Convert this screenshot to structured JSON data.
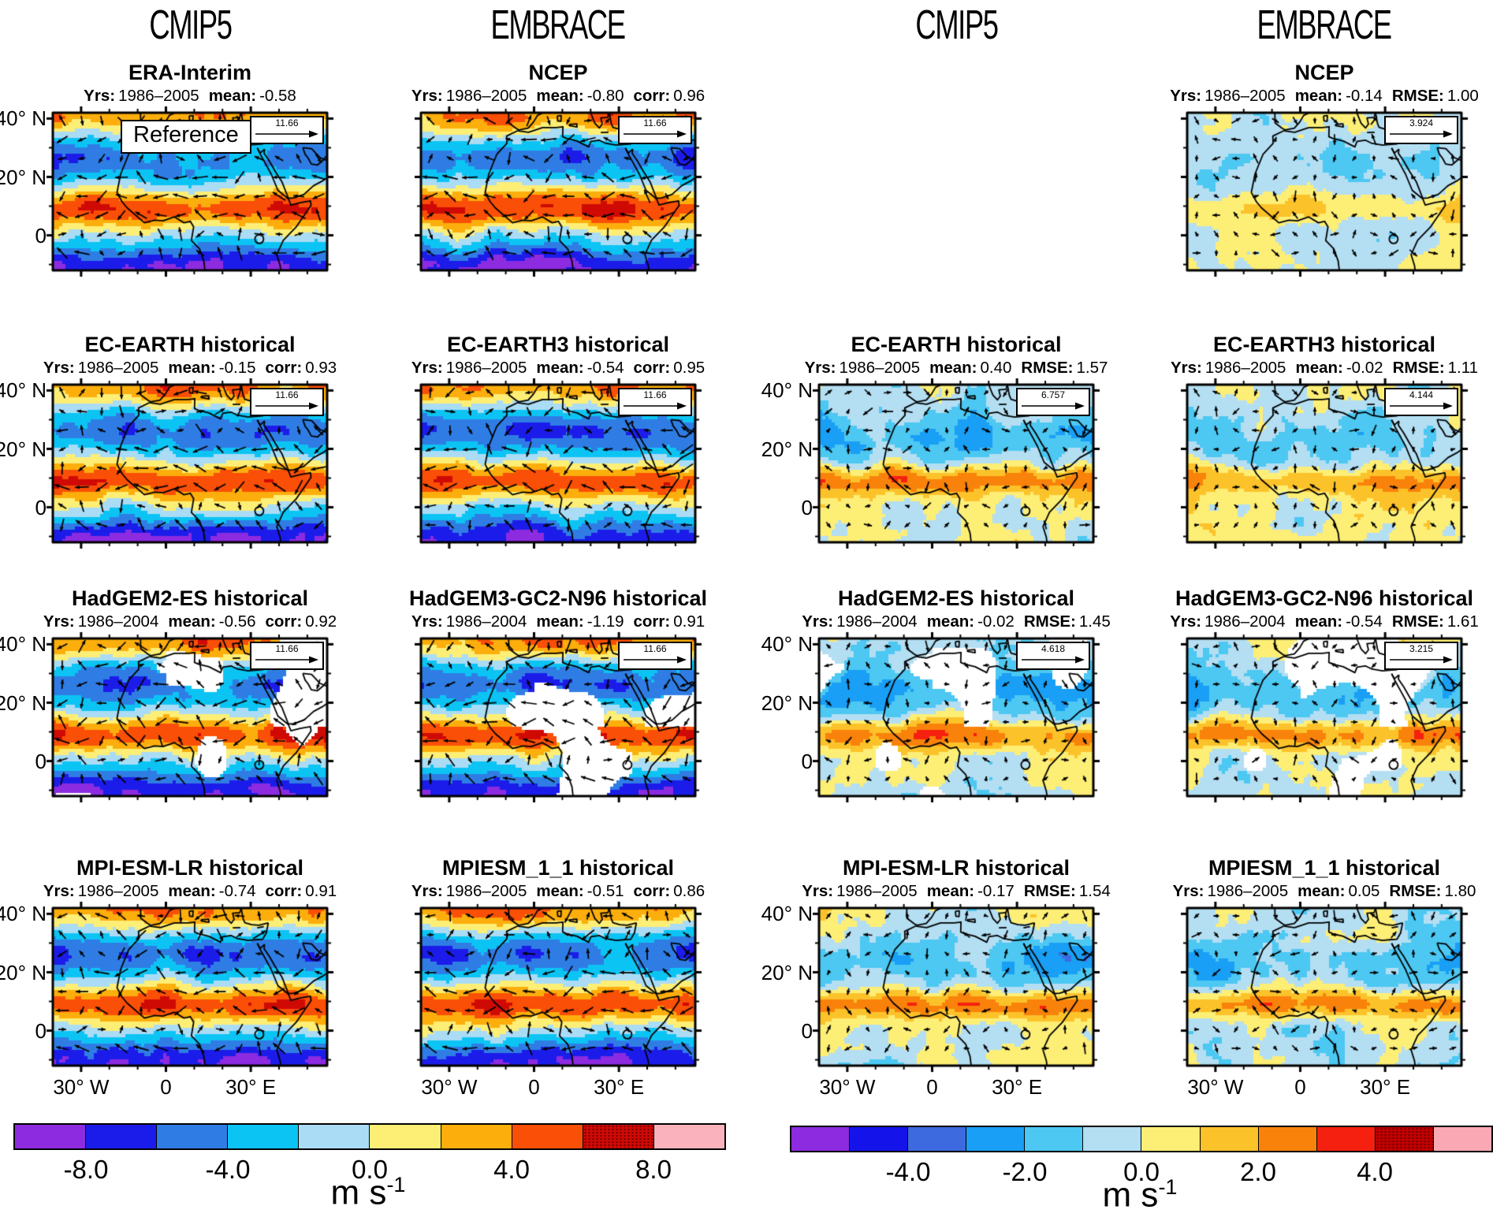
{
  "figure": {
    "headers": [
      {
        "label": "CMIP5"
      },
      {
        "label": "EMBRACE"
      },
      {
        "label": "CMIP5"
      },
      {
        "label": "EMBRACE"
      }
    ],
    "labels": {
      "yrs": "Yrs:",
      "mean": "mean:"
    },
    "reference_label": "Reference",
    "axes": {
      "x_ticks": [
        "30° W",
        "0",
        "30° E"
      ],
      "y_ticks": [
        "40° N",
        "20° N",
        "0"
      ]
    },
    "panels": [
      {
        "title": "ERA-Interim",
        "yrs": "1986–2005",
        "mean": "-0.58",
        "metric_label": "",
        "metric": "",
        "key": "11.66",
        "col": 0,
        "row": 0,
        "kind": "abs",
        "seed": 3,
        "mask": false,
        "reference": true
      },
      {
        "title": "NCEP",
        "yrs": "1986–2005",
        "mean": "-0.80",
        "metric_label": "corr:",
        "metric": "0.96",
        "key": "11.66",
        "col": 1,
        "row": 0,
        "kind": "abs",
        "seed": 4,
        "mask": false
      },
      {
        "title": "NCEP",
        "yrs": "1986–2005",
        "mean": "-0.14",
        "metric_label": "RMSE:",
        "metric": "1.00",
        "key": "3.924",
        "col": 3,
        "row": 0,
        "kind": "diff",
        "strength": 0.45,
        "seed": 5,
        "mask": false
      },
      {
        "title": "EC-EARTH historical",
        "yrs": "1986–2005",
        "mean": "-0.15",
        "metric_label": "corr:",
        "metric": "0.93",
        "key": "11.66",
        "col": 0,
        "row": 1,
        "kind": "abs",
        "seed": 6,
        "mask": false
      },
      {
        "title": "EC-EARTH3 historical",
        "yrs": "1986–2005",
        "mean": "-0.54",
        "metric_label": "corr:",
        "metric": "0.95",
        "key": "11.66",
        "col": 1,
        "row": 1,
        "kind": "abs",
        "seed": 7,
        "mask": false
      },
      {
        "title": "EC-EARTH historical",
        "yrs": "1986–2005",
        "mean": "0.40",
        "metric_label": "RMSE:",
        "metric": "1.57",
        "key": "6.757",
        "col": 2,
        "row": 1,
        "kind": "diff",
        "strength": 1,
        "seed": 8,
        "mask": false
      },
      {
        "title": "EC-EARTH3 historical",
        "yrs": "1986–2005",
        "mean": "-0.02",
        "metric_label": "RMSE:",
        "metric": "1.11",
        "key": "4.144",
        "col": 3,
        "row": 1,
        "kind": "diff",
        "strength": 0.8,
        "seed": 9,
        "mask": false
      },
      {
        "title": "HadGEM2-ES historical",
        "yrs": "1986–2004",
        "mean": "-0.56",
        "metric_label": "corr:",
        "metric": "0.92",
        "key": "11.66",
        "col": 0,
        "row": 2,
        "kind": "abs",
        "seed": 10,
        "mask": true
      },
      {
        "title": "HadGEM3-GC2-N96 historical",
        "yrs": "1986–2004",
        "mean": "-1.19",
        "metric_label": "corr:",
        "metric": "0.91",
        "key": "11.66",
        "col": 1,
        "row": 2,
        "kind": "abs",
        "seed": 11,
        "mask": true
      },
      {
        "title": "HadGEM2-ES historical",
        "yrs": "1986–2004",
        "mean": "-0.02",
        "metric_label": "RMSE:",
        "metric": "1.45",
        "key": "4.618",
        "col": 2,
        "row": 2,
        "kind": "diff",
        "strength": 1,
        "seed": 12,
        "mask": true
      },
      {
        "title": "HadGEM3-GC2-N96 historical",
        "yrs": "1986–2004",
        "mean": "-0.54",
        "metric_label": "RMSE:",
        "metric": "1.61",
        "key": "3.215",
        "col": 3,
        "row": 2,
        "kind": "diff",
        "strength": 1,
        "seed": 13,
        "mask": true
      },
      {
        "title": "MPI-ESM-LR historical",
        "yrs": "1986–2005",
        "mean": "-0.74",
        "metric_label": "corr:",
        "metric": "0.91",
        "key": null,
        "col": 0,
        "row": 3,
        "kind": "abs",
        "seed": 14,
        "mask": false
      },
      {
        "title": "MPIESM_1_1 historical",
        "yrs": "1986–2005",
        "mean": "-0.51",
        "metric_label": "corr:",
        "metric": "0.86",
        "key": null,
        "col": 1,
        "row": 3,
        "kind": "abs",
        "seed": 15,
        "mask": false
      },
      {
        "title": "MPI-ESM-LR historical",
        "yrs": "1986–2005",
        "mean": "-0.17",
        "metric_label": "RMSE:",
        "metric": "1.54",
        "key": null,
        "col": 2,
        "row": 3,
        "kind": "diff",
        "strength": 1,
        "seed": 16,
        "mask": false
      },
      {
        "title": "MPIESM_1_1 historical",
        "yrs": "1986–2005",
        "mean": "0.05",
        "metric_label": "RMSE:",
        "metric": "1.80",
        "key": null,
        "col": 3,
        "row": 3,
        "kind": "diff",
        "strength": 1,
        "seed": 17,
        "mask": false
      }
    ],
    "colorbars": {
      "left": {
        "unit": "m s",
        "unit_sup": "-1",
        "labels": [
          "-8.0",
          "-4.0",
          "0.0",
          "4.0",
          "8.0"
        ],
        "colors": [
          "#8c2be0",
          "#1c1cea",
          "#2f7de4",
          "#0cc4f4",
          "#abdcf5",
          "#fdee76",
          "#fcae0c",
          "#fa4f07",
          "#cf0a04",
          "#fab3bc"
        ],
        "hatch_index": 8
      },
      "right": {
        "unit": "m s",
        "unit_sup": "-1",
        "labels": [
          "-4.0",
          "-2.0",
          "0.0",
          "2.0",
          "4.0"
        ],
        "colors": [
          "#8c2be0",
          "#1414ea",
          "#3e6ae0",
          "#199ff5",
          "#4cc8f2",
          "#b4def2",
          "#fdee76",
          "#fcc22a",
          "#f9820b",
          "#f52010",
          "#c00000",
          "#faa9b4"
        ],
        "hatch_index": 10
      }
    }
  },
  "chart_data": {
    "type": "map-grid",
    "title": "Wind field maps: CMIP5 and EMBRACE models vs reanalysis references, with vector overlays",
    "columns": [
      "CMIP5",
      "EMBRACE",
      "CMIP5",
      "EMBRACE"
    ],
    "map_domain": {
      "lon": [
        -40,
        57
      ],
      "lat": [
        -12,
        42
      ],
      "x_ticks": [
        "30° W",
        "0",
        "30° E"
      ],
      "y_ticks": [
        "40° N",
        "20° N",
        "0"
      ]
    },
    "panels": [
      {
        "col": 0,
        "row": 0,
        "title": "ERA-Interim",
        "years": "1986–2005",
        "mean": -0.58,
        "vector_key": 11.66,
        "label": "Reference"
      },
      {
        "col": 1,
        "row": 0,
        "title": "NCEP",
        "years": "1986–2005",
        "mean": -0.8,
        "corr": 0.96,
        "vector_key": 11.66
      },
      {
        "col": 3,
        "row": 0,
        "title": "NCEP",
        "years": "1986–2005",
        "mean": -0.14,
        "rmse": 1.0,
        "vector_key": 3.924
      },
      {
        "col": 0,
        "row": 1,
        "title": "EC-EARTH historical",
        "years": "1986–2005",
        "mean": -0.15,
        "corr": 0.93,
        "vector_key": 11.66
      },
      {
        "col": 1,
        "row": 1,
        "title": "EC-EARTH3 historical",
        "years": "1986–2005",
        "mean": -0.54,
        "corr": 0.95,
        "vector_key": 11.66
      },
      {
        "col": 2,
        "row": 1,
        "title": "EC-EARTH historical",
        "years": "1986–2005",
        "mean": 0.4,
        "rmse": 1.57,
        "vector_key": 6.757
      },
      {
        "col": 3,
        "row": 1,
        "title": "EC-EARTH3 historical",
        "years": "1986–2005",
        "mean": -0.02,
        "rmse": 1.11,
        "vector_key": 4.144
      },
      {
        "col": 0,
        "row": 2,
        "title": "HadGEM2-ES historical",
        "years": "1986–2004",
        "mean": -0.56,
        "corr": 0.92,
        "vector_key": 11.66
      },
      {
        "col": 1,
        "row": 2,
        "title": "HadGEM3-GC2-N96 historical",
        "years": "1986–2004",
        "mean": -1.19,
        "corr": 0.91,
        "vector_key": 11.66
      },
      {
        "col": 2,
        "row": 2,
        "title": "HadGEM2-ES historical",
        "years": "1986–2004",
        "mean": -0.02,
        "rmse": 1.45,
        "vector_key": 4.618
      },
      {
        "col": 3,
        "row": 2,
        "title": "HadGEM3-GC2-N96 historical",
        "years": "1986–2004",
        "mean": -0.54,
        "rmse": 1.61,
        "vector_key": 3.215
      },
      {
        "col": 0,
        "row": 3,
        "title": "MPI-ESM-LR historical",
        "years": "1986–2005",
        "mean": -0.74,
        "corr": 0.91
      },
      {
        "col": 1,
        "row": 3,
        "title": "MPIESM_1_1 historical",
        "years": "1986–2005",
        "mean": -0.51,
        "corr": 0.86
      },
      {
        "col": 2,
        "row": 3,
        "title": "MPI-ESM-LR historical",
        "years": "1986–2005",
        "mean": -0.17,
        "rmse": 1.54
      },
      {
        "col": 3,
        "row": 3,
        "title": "MPIESM_1_1 historical",
        "years": "1986–2005",
        "mean": 0.05,
        "rmse": 1.8
      }
    ],
    "colorbar_left": {
      "unit": "m s-1",
      "tick_values": [
        -8.0,
        -4.0,
        0.0,
        4.0,
        8.0
      ],
      "n_segments": 10,
      "range": [
        -10,
        10
      ]
    },
    "colorbar_right": {
      "unit": "m s-1",
      "tick_values": [
        -4.0,
        -2.0,
        0.0,
        2.0,
        4.0
      ],
      "n_segments": 12,
      "range": [
        -6,
        6
      ]
    }
  }
}
